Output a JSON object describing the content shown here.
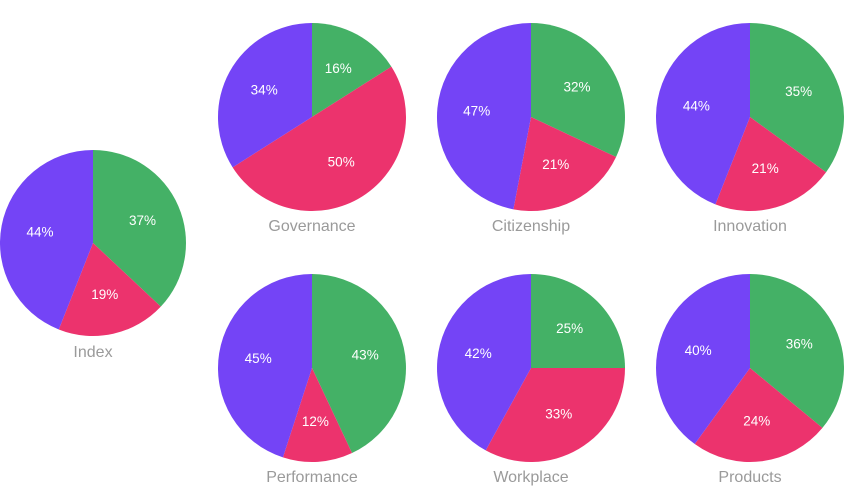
{
  "colors": {
    "positive": "#44b166",
    "negative": "#ec336d",
    "neutral": "#7444f6"
  },
  "chart_data": [
    {
      "type": "pie",
      "title": "Index",
      "slices": [
        {
          "label": "37%",
          "value": 37,
          "color": "#44b166"
        },
        {
          "label": "19%",
          "value": 19,
          "color": "#ec336d"
        },
        {
          "label": "44%",
          "value": 44,
          "color": "#7444f6"
        }
      ]
    },
    {
      "type": "pie",
      "title": "Governance",
      "slices": [
        {
          "label": "16%",
          "value": 16,
          "color": "#44b166"
        },
        {
          "label": "50%",
          "value": 50,
          "color": "#ec336d"
        },
        {
          "label": "34%",
          "value": 34,
          "color": "#7444f6"
        }
      ]
    },
    {
      "type": "pie",
      "title": "Citizenship",
      "slices": [
        {
          "label": "32%",
          "value": 32,
          "color": "#44b166"
        },
        {
          "label": "21%",
          "value": 21,
          "color": "#ec336d"
        },
        {
          "label": "47%",
          "value": 47,
          "color": "#7444f6"
        }
      ]
    },
    {
      "type": "pie",
      "title": "Innovation",
      "slices": [
        {
          "label": "35%",
          "value": 35,
          "color": "#44b166"
        },
        {
          "label": "21%",
          "value": 21,
          "color": "#ec336d"
        },
        {
          "label": "44%",
          "value": 44,
          "color": "#7444f6"
        }
      ]
    },
    {
      "type": "pie",
      "title": "Performance",
      "slices": [
        {
          "label": "43%",
          "value": 43,
          "color": "#44b166"
        },
        {
          "label": "12%",
          "value": 12,
          "color": "#ec336d"
        },
        {
          "label": "45%",
          "value": 45,
          "color": "#7444f6"
        }
      ]
    },
    {
      "type": "pie",
      "title": "Workplace",
      "slices": [
        {
          "label": "25%",
          "value": 25,
          "color": "#44b166"
        },
        {
          "label": "33%",
          "value": 33,
          "color": "#ec336d"
        },
        {
          "label": "42%",
          "value": 42,
          "color": "#7444f6"
        }
      ]
    },
    {
      "type": "pie",
      "title": "Products",
      "slices": [
        {
          "label": "36%",
          "value": 36,
          "color": "#44b166"
        },
        {
          "label": "24%",
          "value": 24,
          "color": "#ec336d"
        },
        {
          "label": "40%",
          "value": 40,
          "color": "#7444f6"
        }
      ]
    }
  ]
}
